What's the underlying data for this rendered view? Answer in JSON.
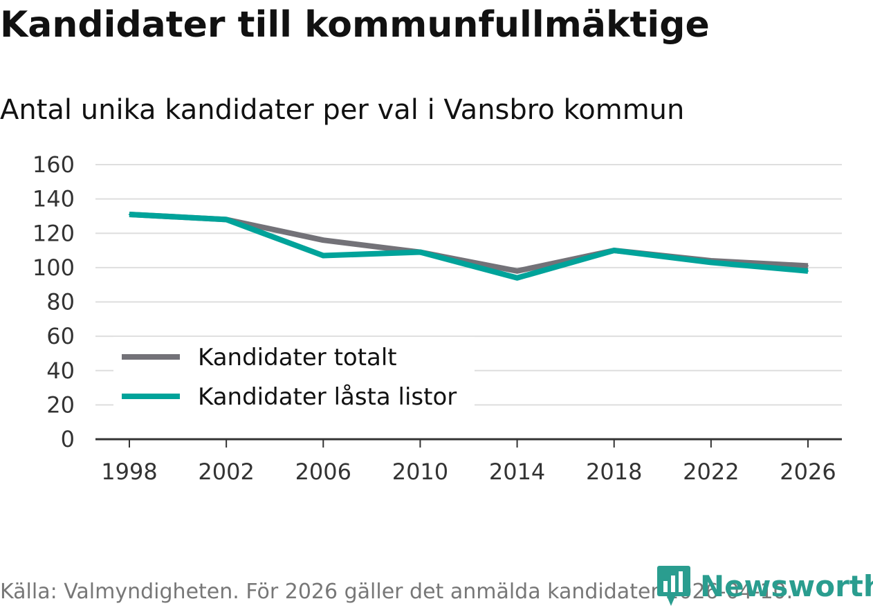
{
  "title": "Kandidater till kommunfullmäktige",
  "subtitle": "Antal unika kandidater per val i Vansbro kommun",
  "source": "Källa: Valmyndigheten. För 2026 gäller det anmälda kandidater 2026-04-10.",
  "brand": {
    "name": "Newsworthy",
    "color": "#2a9d8f"
  },
  "chart_data": {
    "type": "line",
    "x": [
      "1998",
      "2002",
      "2006",
      "2010",
      "2014",
      "2018",
      "2022",
      "2026"
    ],
    "series": [
      {
        "name": "Kandidater totalt",
        "color": "#737278",
        "values": [
          131,
          128,
          116,
          109,
          98,
          110,
          104,
          101
        ]
      },
      {
        "name": "Kandidater låsta listor",
        "color": "#00a39a",
        "values": [
          131,
          128,
          107,
          109,
          94,
          110,
          103,
          98
        ]
      }
    ],
    "yticks": [
      0,
      20,
      40,
      60,
      80,
      100,
      120,
      140,
      160
    ],
    "ylim": [
      0,
      160
    ],
    "legend": "bottom-left",
    "grid": true
  }
}
